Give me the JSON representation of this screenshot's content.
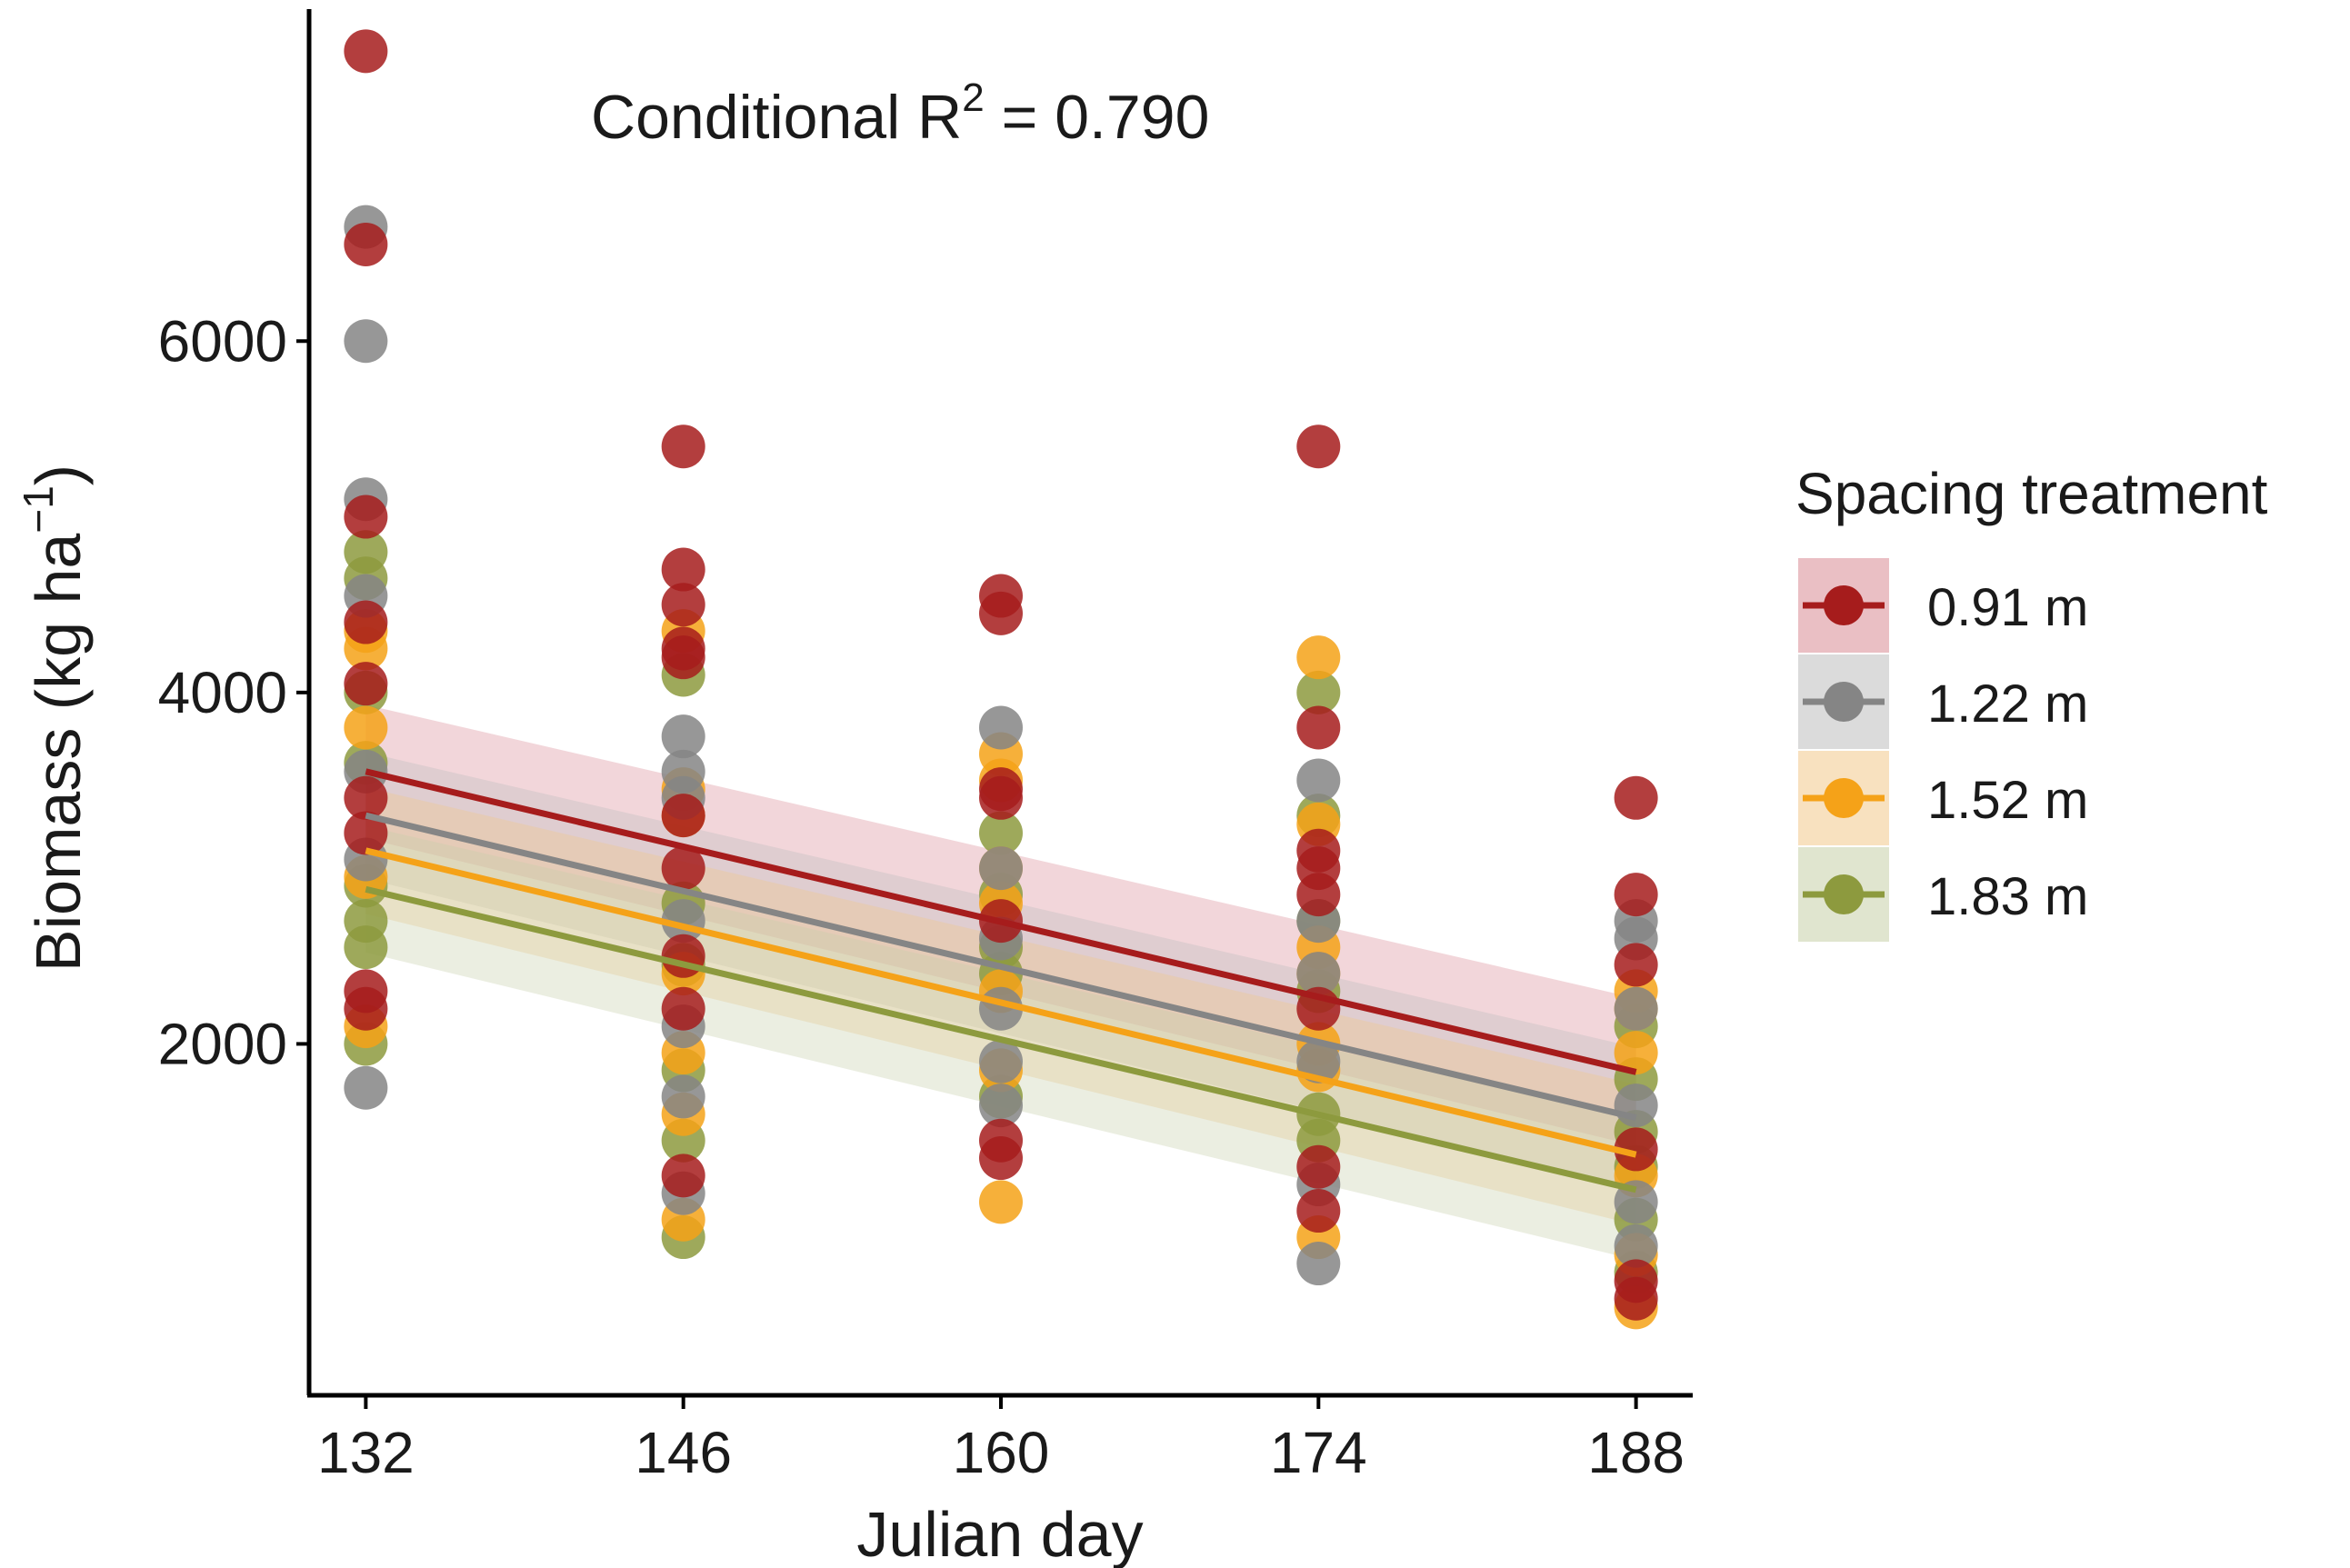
{
  "chart_data": {
    "type": "scatter",
    "annotation": {
      "prefix": "Conditional R",
      "superscript": "2",
      "suffix": " = 0.790"
    },
    "xlabel": "Julian day",
    "ylabel": {
      "main": "Biomass (kg ha",
      "superscript": "−1",
      "close": ")"
    },
    "x_ticks": [
      132,
      146,
      160,
      174,
      188
    ],
    "y_ticks": [
      2000,
      4000,
      6000
    ],
    "xlim": [
      129.5,
      190.5
    ],
    "ylim": [
      0,
      7900
    ],
    "legend": {
      "title": "Spacing treatment",
      "position": "right",
      "entries": [
        "0.91 m",
        "1.22 m",
        "1.52 m",
        "1.83 m"
      ]
    },
    "series": [
      {
        "name": "0.91 m",
        "color": "#a61c1c",
        "ribbon_color": "#d98a94",
        "trend": {
          "x": [
            132,
            188
          ],
          "y": [
            3550,
            1840
          ]
        },
        "ribbon_half_width": [
          380,
          420
        ],
        "points": [
          {
            "x": 132,
            "y": 7650
          },
          {
            "x": 132,
            "y": 6550
          },
          {
            "x": 132,
            "y": 5000
          },
          {
            "x": 132,
            "y": 4400
          },
          {
            "x": 132,
            "y": 4050
          },
          {
            "x": 132,
            "y": 3400
          },
          {
            "x": 132,
            "y": 3200
          },
          {
            "x": 132,
            "y": 2300
          },
          {
            "x": 132,
            "y": 2200
          },
          {
            "x": 146,
            "y": 5400
          },
          {
            "x": 146,
            "y": 4700
          },
          {
            "x": 146,
            "y": 4500
          },
          {
            "x": 146,
            "y": 4250
          },
          {
            "x": 146,
            "y": 4200
          },
          {
            "x": 146,
            "y": 3300
          },
          {
            "x": 146,
            "y": 3000
          },
          {
            "x": 146,
            "y": 2500
          },
          {
            "x": 146,
            "y": 2200
          },
          {
            "x": 146,
            "y": 1250
          },
          {
            "x": 160,
            "y": 4550
          },
          {
            "x": 160,
            "y": 4450
          },
          {
            "x": 160,
            "y": 3450
          },
          {
            "x": 160,
            "y": 3400
          },
          {
            "x": 160,
            "y": 2700
          },
          {
            "x": 160,
            "y": 1450
          },
          {
            "x": 160,
            "y": 1350
          },
          {
            "x": 174,
            "y": 5400
          },
          {
            "x": 174,
            "y": 3800
          },
          {
            "x": 174,
            "y": 3100
          },
          {
            "x": 174,
            "y": 3000
          },
          {
            "x": 174,
            "y": 2850
          },
          {
            "x": 174,
            "y": 2200
          },
          {
            "x": 174,
            "y": 1300
          },
          {
            "x": 174,
            "y": 1050
          },
          {
            "x": 188,
            "y": 3400
          },
          {
            "x": 188,
            "y": 2850
          },
          {
            "x": 188,
            "y": 2450
          },
          {
            "x": 188,
            "y": 1400
          },
          {
            "x": 188,
            "y": 650
          },
          {
            "x": 188,
            "y": 550
          }
        ]
      },
      {
        "name": "1.22 m",
        "color": "#858585",
        "ribbon_color": "#bdbdbd",
        "trend": {
          "x": [
            132,
            188
          ],
          "y": [
            3300,
            1580
          ]
        },
        "ribbon_half_width": [
          360,
          400
        ],
        "points": [
          {
            "x": 132,
            "y": 6650
          },
          {
            "x": 132,
            "y": 6000
          },
          {
            "x": 132,
            "y": 5100
          },
          {
            "x": 132,
            "y": 4550
          },
          {
            "x": 132,
            "y": 3550
          },
          {
            "x": 132,
            "y": 3050
          },
          {
            "x": 132,
            "y": 1750
          },
          {
            "x": 146,
            "y": 3750
          },
          {
            "x": 146,
            "y": 3550
          },
          {
            "x": 146,
            "y": 3400
          },
          {
            "x": 146,
            "y": 2700
          },
          {
            "x": 146,
            "y": 2100
          },
          {
            "x": 146,
            "y": 1700
          },
          {
            "x": 146,
            "y": 1150
          },
          {
            "x": 160,
            "y": 3800
          },
          {
            "x": 160,
            "y": 3000
          },
          {
            "x": 160,
            "y": 2600
          },
          {
            "x": 160,
            "y": 2200
          },
          {
            "x": 160,
            "y": 1900
          },
          {
            "x": 160,
            "y": 1650
          },
          {
            "x": 174,
            "y": 3500
          },
          {
            "x": 174,
            "y": 2700
          },
          {
            "x": 174,
            "y": 2400
          },
          {
            "x": 174,
            "y": 1900
          },
          {
            "x": 174,
            "y": 1200
          },
          {
            "x": 174,
            "y": 750
          },
          {
            "x": 188,
            "y": 2700
          },
          {
            "x": 188,
            "y": 2600
          },
          {
            "x": 188,
            "y": 2200
          },
          {
            "x": 188,
            "y": 1650
          },
          {
            "x": 188,
            "y": 1100
          },
          {
            "x": 188,
            "y": 850
          }
        ]
      },
      {
        "name": "1.52 m",
        "color": "#f5a218",
        "ribbon_color": "#f2c98a",
        "trend": {
          "x": [
            132,
            188
          ],
          "y": [
            3100,
            1370
          ]
        },
        "ribbon_half_width": [
          360,
          400
        ],
        "points": [
          {
            "x": 132,
            "y": 4350
          },
          {
            "x": 132,
            "y": 4250
          },
          {
            "x": 132,
            "y": 3800
          },
          {
            "x": 132,
            "y": 2950
          },
          {
            "x": 132,
            "y": 2100
          },
          {
            "x": 146,
            "y": 4350
          },
          {
            "x": 146,
            "y": 3450
          },
          {
            "x": 146,
            "y": 3300
          },
          {
            "x": 146,
            "y": 2400
          },
          {
            "x": 146,
            "y": 1950
          },
          {
            "x": 146,
            "y": 1600
          },
          {
            "x": 146,
            "y": 1000
          },
          {
            "x": 160,
            "y": 3650
          },
          {
            "x": 160,
            "y": 3500
          },
          {
            "x": 160,
            "y": 3000
          },
          {
            "x": 160,
            "y": 2800
          },
          {
            "x": 160,
            "y": 2300
          },
          {
            "x": 160,
            "y": 1850
          },
          {
            "x": 160,
            "y": 1100
          },
          {
            "x": 174,
            "y": 4200
          },
          {
            "x": 174,
            "y": 3250
          },
          {
            "x": 174,
            "y": 2550
          },
          {
            "x": 174,
            "y": 2400
          },
          {
            "x": 174,
            "y": 2000
          },
          {
            "x": 174,
            "y": 1850
          },
          {
            "x": 174,
            "y": 900
          },
          {
            "x": 188,
            "y": 2300
          },
          {
            "x": 188,
            "y": 2200
          },
          {
            "x": 188,
            "y": 1950
          },
          {
            "x": 188,
            "y": 1250
          },
          {
            "x": 188,
            "y": 800
          },
          {
            "x": 188,
            "y": 500
          }
        ]
      },
      {
        "name": "1.83 m",
        "color": "#8d9a3e",
        "ribbon_color": "#c6cfa8",
        "trend": {
          "x": [
            132,
            188
          ],
          "y": [
            2880,
            1170
          ]
        },
        "ribbon_half_width": [
          360,
          400
        ],
        "points": [
          {
            "x": 132,
            "y": 4800
          },
          {
            "x": 132,
            "y": 4650
          },
          {
            "x": 132,
            "y": 4000
          },
          {
            "x": 132,
            "y": 3600
          },
          {
            "x": 132,
            "y": 2900
          },
          {
            "x": 132,
            "y": 2700
          },
          {
            "x": 132,
            "y": 2550
          },
          {
            "x": 132,
            "y": 2000
          },
          {
            "x": 146,
            "y": 4100
          },
          {
            "x": 146,
            "y": 2800
          },
          {
            "x": 146,
            "y": 2450
          },
          {
            "x": 146,
            "y": 1850
          },
          {
            "x": 146,
            "y": 1450
          },
          {
            "x": 146,
            "y": 900
          },
          {
            "x": 160,
            "y": 3200
          },
          {
            "x": 160,
            "y": 2850
          },
          {
            "x": 160,
            "y": 2550
          },
          {
            "x": 160,
            "y": 2400
          },
          {
            "x": 160,
            "y": 1700
          },
          {
            "x": 174,
            "y": 4000
          },
          {
            "x": 174,
            "y": 3300
          },
          {
            "x": 174,
            "y": 2700
          },
          {
            "x": 174,
            "y": 2300
          },
          {
            "x": 174,
            "y": 1600
          },
          {
            "x": 174,
            "y": 1450
          },
          {
            "x": 188,
            "y": 2100
          },
          {
            "x": 188,
            "y": 1800
          },
          {
            "x": 188,
            "y": 1500
          },
          {
            "x": 188,
            "y": 1300
          },
          {
            "x": 188,
            "y": 1000
          },
          {
            "x": 188,
            "y": 700
          }
        ]
      }
    ]
  }
}
